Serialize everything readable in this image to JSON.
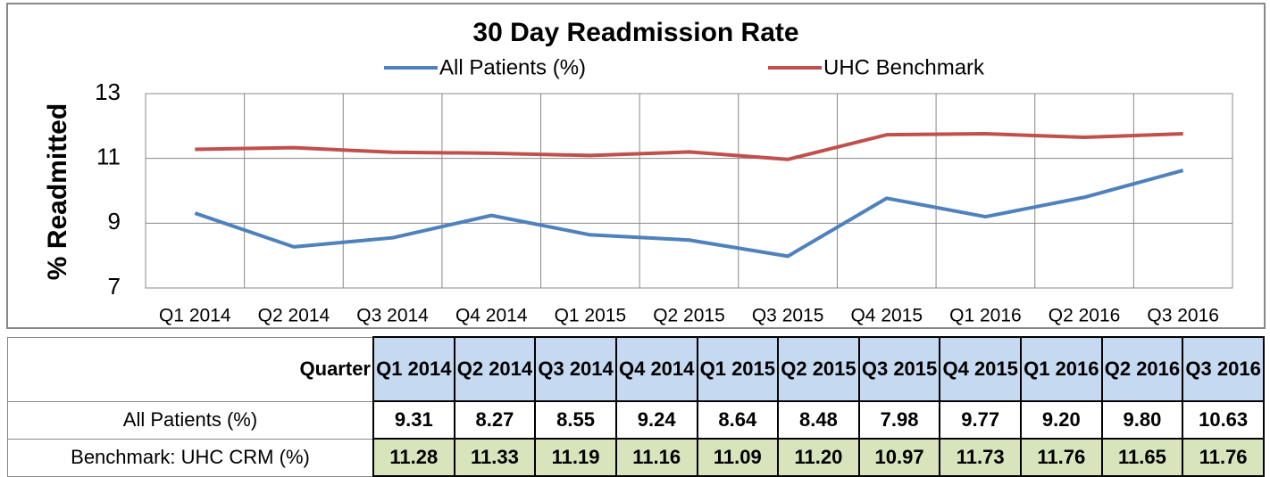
{
  "chart_data": {
    "type": "line",
    "title": "30 Day Readmission Rate",
    "y_label": "% Readmitted",
    "categories": [
      "Q1 2014",
      "Q2 2014",
      "Q3 2014",
      "Q4 2014",
      "Q1 2015",
      "Q2 2015",
      "Q3 2015",
      "Q4 2015",
      "Q1 2016",
      "Q2 2016",
      "Q3 2016"
    ],
    "series": [
      {
        "name": "All Patients (%)",
        "color": "#4f81bd",
        "values": [
          9.31,
          8.27,
          8.55,
          9.24,
          8.64,
          8.48,
          7.98,
          9.77,
          9.2,
          9.8,
          10.63
        ],
        "value_labels": [
          "9.31",
          "8.27",
          "8.55",
          "9.24",
          "8.64",
          "8.48",
          "7.98",
          "9.77",
          "9.20",
          "9.80",
          "10.63"
        ]
      },
      {
        "name": "UHC Benchmark",
        "color": "#c0504d",
        "values": [
          11.28,
          11.33,
          11.19,
          11.16,
          11.09,
          11.2,
          10.97,
          11.73,
          11.76,
          11.65,
          11.76
        ],
        "value_labels": [
          "11.28",
          "11.33",
          "11.19",
          "11.16",
          "11.09",
          "11.20",
          "10.97",
          "11.73",
          "11.76",
          "11.65",
          "11.76"
        ]
      }
    ],
    "ylim": [
      7,
      13
    ],
    "yticks": [
      7,
      9,
      11,
      13
    ],
    "grid": true,
    "legend": "top"
  },
  "table": {
    "header": "Quarter",
    "row_labels": [
      "All Patients (%)",
      "Benchmark: UHC CRM (%)"
    ],
    "row_colors": [
      "#ffffff",
      "#d8e4bc"
    ],
    "header_color": "#c5d9f1"
  }
}
